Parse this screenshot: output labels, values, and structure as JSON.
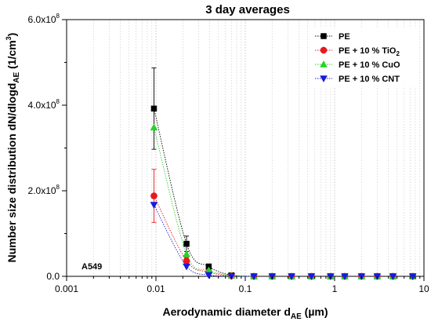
{
  "chart_data": {
    "type": "scatter",
    "title": "3 day averages",
    "xlabel": "Aerodynamic diameter d",
    "xlabel_sub": "AE",
    "xlabel_unit": " (µm)",
    "ylabel": "Number size distribution dN/dlogd",
    "ylabel_sub": "AE",
    "ylabel_unit_pre": " (1/cm",
    "ylabel_unit_sup": "3",
    "ylabel_unit_post": ")",
    "x_scale": "log",
    "xlim": [
      0.001,
      10
    ],
    "ylim": [
      0,
      600000000
    ],
    "x_ticks": [
      {
        "value": 0.001,
        "label": "0.001"
      },
      {
        "value": 0.01,
        "label": "0.01"
      },
      {
        "value": 0.1,
        "label": "0.1"
      },
      {
        "value": 1,
        "label": "1"
      },
      {
        "value": 10,
        "label": "10"
      }
    ],
    "y_ticks": [
      {
        "value": 0,
        "mant": "0.0",
        "exp": ""
      },
      {
        "value": 200000000,
        "mant": "2.0x10",
        "exp": "8"
      },
      {
        "value": 400000000,
        "mant": "4.0x10",
        "exp": "8"
      },
      {
        "value": 600000000,
        "mant": "6.0x10",
        "exp": "8"
      }
    ],
    "grid": "vertical dotted lines at major and minor x ticks",
    "legend_position": "top-right",
    "annotation": "A549",
    "x": [
      0.0095,
      0.022,
      0.039,
      0.07,
      0.125,
      0.2,
      0.33,
      0.55,
      0.9,
      1.3,
      2.0,
      3.0,
      4.5,
      7.5
    ],
    "series": [
      {
        "name": "PE",
        "name_sub": "",
        "marker": "square",
        "color": "#000000",
        "values": [
          392000000,
          76000000,
          23000000,
          2500000,
          0,
          0,
          0,
          0,
          0,
          0,
          0,
          0,
          0,
          0
        ],
        "error": [
          95000000,
          18000000,
          4000000,
          0,
          0,
          0,
          0,
          0,
          0,
          0,
          0,
          0,
          0,
          0
        ]
      },
      {
        "name": "PE + 10 % TiO",
        "name_sub": "2",
        "marker": "circle",
        "color": "#e8181c",
        "values": [
          188000000,
          36000000,
          10000000,
          1000000,
          0,
          0,
          0,
          0,
          0,
          0,
          0,
          0,
          0,
          0
        ],
        "error": [
          62000000,
          8000000,
          0,
          0,
          0,
          0,
          0,
          0,
          0,
          0,
          0,
          0,
          0,
          0
        ]
      },
      {
        "name": "PE + 10 % CuO",
        "name_sub": "",
        "marker": "triangle-up",
        "color": "#22d42a",
        "values": [
          348000000,
          52000000,
          14000000,
          2000000,
          0,
          0,
          0,
          0,
          0,
          0,
          0,
          0,
          0,
          0
        ],
        "error": [
          0,
          0,
          0,
          0,
          0,
          0,
          0,
          0,
          0,
          0,
          0,
          0,
          0,
          0
        ]
      },
      {
        "name": "PE + 10 % CNT",
        "name_sub": "",
        "marker": "triangle-down",
        "color": "#1a1adb",
        "values": [
          167000000,
          23000000,
          3000000,
          500000,
          0,
          0,
          0,
          0,
          0,
          0,
          0,
          0,
          0,
          0
        ],
        "error": [
          0,
          0,
          0,
          0,
          0,
          0,
          0,
          0,
          0,
          0,
          0,
          0,
          0,
          0
        ]
      }
    ]
  }
}
